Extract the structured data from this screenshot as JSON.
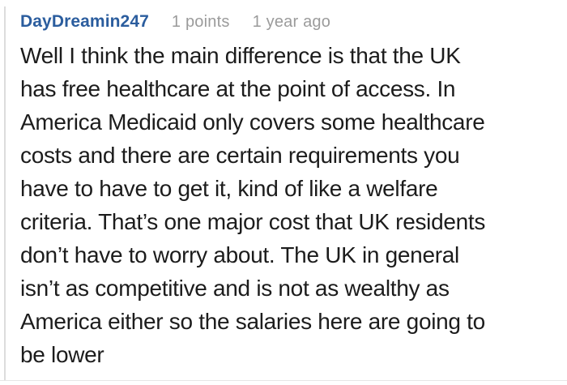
{
  "comment": {
    "author": "DayDreamin247",
    "points": "1 points",
    "age": "1 year ago",
    "body": "Well I think the main difference is that the UK\nhas free healthcare at the point of access. In\nAmerica Medicaid only covers some healthcare\ncosts and there are certain requirements you\nhave to have to get it, kind of like a welfare\ncriteria. That’s one major cost that UK residents\ndon’t have to worry about. The UK in general\nisn’t as competitive and is not as wealthy as\nAmerica either so the salaries here are going to\nbe lower"
  },
  "colors": {
    "author_blue": "#2b5d9e",
    "meta_gray": "#9b9b9b",
    "body_text": "#1c1c1c",
    "thread_line": "#dcdcdc",
    "divider": "#e6e6e6",
    "background": "#ffffff"
  }
}
